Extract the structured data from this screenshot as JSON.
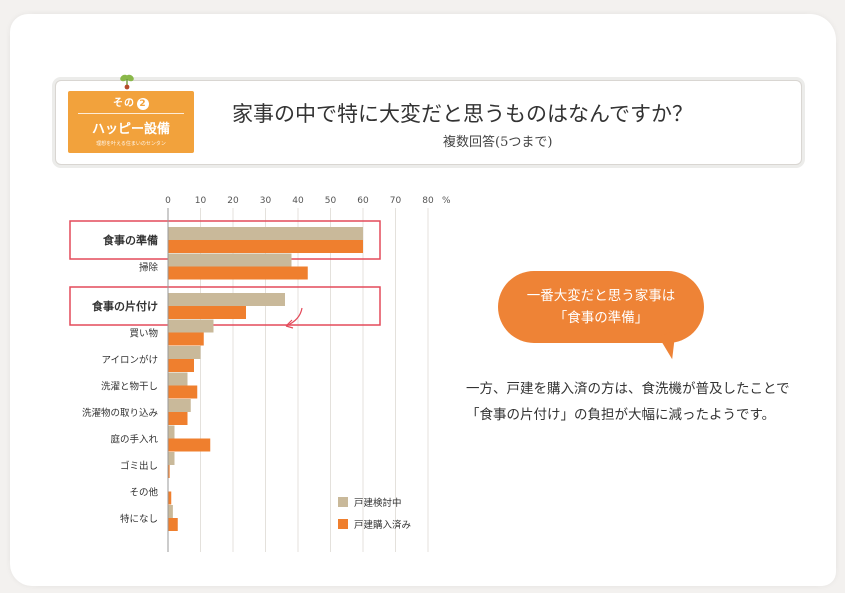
{
  "badge": {
    "number_label": "その",
    "number": "2",
    "title": "ハッピー設備",
    "subtitle": "理想を叶える住まいのセンタン"
  },
  "title": "家事の中で特に大変だと思うものはなんですか？",
  "subtitle": "複数回答(5つまで)",
  "colors": {
    "series_1": "#c9b99a",
    "series_2": "#ef7f2e",
    "highlight_border": "#e44a5a",
    "accent": "#f2a23c"
  },
  "chart_data": {
    "type": "bar",
    "orientation": "horizontal",
    "title": "家事の中で特に大変だと思うものはなんですか？",
    "categories": [
      "食事の準備",
      "掃除",
      "食事の片付け",
      "買い物",
      "アイロンがけ",
      "洗濯と物干し",
      "洗濯物の取り込み",
      "庭の手入れ",
      "ゴミ出し",
      "その他",
      "特になし"
    ],
    "series": [
      {
        "name": "戸建検討中",
        "values": [
          60,
          38,
          36,
          14,
          10,
          6,
          7,
          2,
          2,
          0,
          1.5
        ]
      },
      {
        "name": "戸建購入済み",
        "values": [
          60,
          43,
          24,
          11,
          8,
          9,
          6,
          13,
          0.5,
          1,
          3
        ]
      }
    ],
    "ticks": [
      "0",
      "10",
      "20",
      "30",
      "40",
      "50",
      "60",
      "70",
      "80"
    ],
    "unit": "%",
    "xlim": [
      0,
      80
    ],
    "grid": true,
    "legend_position": "bottom-right",
    "highlighted": [
      "食事の準備",
      "食事の片付け"
    ]
  },
  "bubble": {
    "line1": "一番大変だと思う家事は",
    "line2": "「食事の準備」"
  },
  "description": {
    "line1": "一方、戸建を購入済の方は、食洗機が普及したことで",
    "line2": "「食事の片付け」の負担が大幅に減ったようです。"
  }
}
